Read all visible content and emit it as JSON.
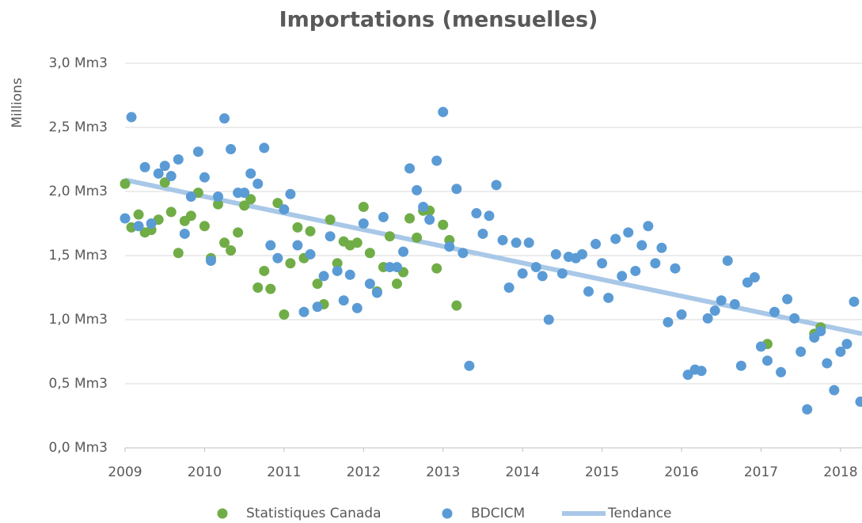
{
  "chart_data": {
    "type": "scatter",
    "title": "Importations (mensuelles)",
    "y_label": "Millions",
    "xlim": [
      2009,
      2018.27
    ],
    "xticks": [
      2009,
      2010,
      2011,
      2012,
      2013,
      2014,
      2015,
      2016,
      2017,
      2018
    ],
    "ylim": [
      0,
      3
    ],
    "yticks": [
      {
        "value": 0,
        "label": "0,0 Mm3"
      },
      {
        "value": 0.5,
        "label": "0,5 Mm3"
      },
      {
        "value": 1,
        "label": "1,0 Mm3"
      },
      {
        "value": 1.5,
        "label": "1,5 Mm3"
      },
      {
        "value": 2,
        "label": "2,0 Mm3"
      },
      {
        "value": 2.5,
        "label": "2,5 Mm3"
      },
      {
        "value": 3,
        "label": "3,0 Mm3"
      }
    ],
    "grid": true,
    "series": [
      {
        "name": "Statistiques Canada",
        "color": "#70ad47",
        "mark": "point",
        "x": [
          2009.0,
          2009.08,
          2009.17,
          2009.25,
          2009.33,
          2009.42,
          2009.5,
          2009.58,
          2009.67,
          2009.75,
          2009.83,
          2009.92,
          2010.0,
          2010.08,
          2010.17,
          2010.25,
          2010.33,
          2010.42,
          2010.5,
          2010.58,
          2010.67,
          2010.75,
          2010.83,
          2010.92,
          2011.0,
          2011.08,
          2011.17,
          2011.25,
          2011.33,
          2011.42,
          2011.5,
          2011.58,
          2011.67,
          2011.75,
          2011.83,
          2011.92,
          2012.0,
          2012.08,
          2012.17,
          2012.25,
          2012.33,
          2012.42,
          2012.5,
          2012.58,
          2012.67,
          2012.75,
          2012.83,
          2012.92,
          2013.0,
          2013.08,
          2013.17,
          2017.08,
          2017.67,
          2017.75
        ],
        "values": [
          2.06,
          1.72,
          1.82,
          1.68,
          1.7,
          1.78,
          2.07,
          1.84,
          1.52,
          1.77,
          1.81,
          1.99,
          1.73,
          1.48,
          1.9,
          1.6,
          1.54,
          1.68,
          1.89,
          1.94,
          1.25,
          1.38,
          1.24,
          1.91,
          1.04,
          1.44,
          1.72,
          1.48,
          1.69,
          1.28,
          1.12,
          1.78,
          1.44,
          1.61,
          1.58,
          1.6,
          1.88,
          1.52,
          1.22,
          1.41,
          1.65,
          1.28,
          1.37,
          1.79,
          1.64,
          1.85,
          1.85,
          1.4,
          1.74,
          1.62,
          1.11,
          0.81,
          0.89,
          0.94
        ]
      },
      {
        "name": "BDCICM",
        "color": "#5b9bd5",
        "mark": "point",
        "x": [
          2009.0,
          2009.08,
          2009.17,
          2009.25,
          2009.33,
          2009.42,
          2009.5,
          2009.58,
          2009.67,
          2009.75,
          2009.83,
          2009.92,
          2010.0,
          2010.08,
          2010.17,
          2010.25,
          2010.33,
          2010.42,
          2010.5,
          2010.58,
          2010.67,
          2010.75,
          2010.83,
          2010.92,
          2011.0,
          2011.08,
          2011.17,
          2011.25,
          2011.33,
          2011.42,
          2011.5,
          2011.58,
          2011.67,
          2011.75,
          2011.83,
          2011.92,
          2012.0,
          2012.08,
          2012.17,
          2012.25,
          2012.33,
          2012.42,
          2012.5,
          2012.58,
          2012.67,
          2012.75,
          2012.83,
          2012.92,
          2013.0,
          2013.08,
          2013.17,
          2013.25,
          2013.33,
          2013.42,
          2013.5,
          2013.58,
          2013.67,
          2013.75,
          2013.83,
          2013.92,
          2014.0,
          2014.08,
          2014.17,
          2014.25,
          2014.33,
          2014.42,
          2014.5,
          2014.58,
          2014.67,
          2014.75,
          2014.83,
          2014.92,
          2015.0,
          2015.08,
          2015.17,
          2015.25,
          2015.33,
          2015.42,
          2015.5,
          2015.58,
          2015.67,
          2015.75,
          2015.83,
          2015.92,
          2016.0,
          2016.08,
          2016.17,
          2016.25,
          2016.33,
          2016.42,
          2016.5,
          2016.58,
          2016.67,
          2016.75,
          2016.83,
          2016.92,
          2017.0,
          2017.08,
          2017.17,
          2017.25,
          2017.33,
          2017.42,
          2017.5,
          2017.58,
          2017.67,
          2017.75,
          2017.83,
          2017.92,
          2018.0,
          2018.08,
          2018.17,
          2018.25
        ],
        "values": [
          1.79,
          2.58,
          1.73,
          2.19,
          1.75,
          2.14,
          2.2,
          2.12,
          2.25,
          1.67,
          1.96,
          2.31,
          2.11,
          1.46,
          1.96,
          2.57,
          2.33,
          1.99,
          1.99,
          2.14,
          2.06,
          2.34,
          1.58,
          1.48,
          1.86,
          1.98,
          1.58,
          1.06,
          1.51,
          1.1,
          1.34,
          1.65,
          1.38,
          1.15,
          1.35,
          1.09,
          1.75,
          1.28,
          1.21,
          1.8,
          1.41,
          1.41,
          1.53,
          2.18,
          2.01,
          1.88,
          1.78,
          2.24,
          2.62,
          1.57,
          2.02,
          1.52,
          0.64,
          1.83,
          1.67,
          1.81,
          2.05,
          1.62,
          1.25,
          1.6,
          1.36,
          1.6,
          1.41,
          1.34,
          1.0,
          1.51,
          1.36,
          1.49,
          1.48,
          1.51,
          1.22,
          1.59,
          1.44,
          1.17,
          1.63,
          1.34,
          1.68,
          1.38,
          1.58,
          1.73,
          1.44,
          1.56,
          0.98,
          1.4,
          1.04,
          0.57,
          0.61,
          0.6,
          1.01,
          1.07,
          1.15,
          1.46,
          1.12,
          0.64,
          1.29,
          1.33,
          0.79,
          0.68,
          1.06,
          0.59,
          1.16,
          1.01,
          0.75,
          0.3,
          0.86,
          0.91,
          0.66,
          0.45,
          0.75,
          0.81,
          1.14,
          0.36
        ]
      },
      {
        "name": "Tendance",
        "color": "#a9c8e8",
        "mark": "line",
        "x": [
          2009,
          2018.27
        ],
        "values": [
          2.09,
          0.89
        ]
      }
    ]
  }
}
